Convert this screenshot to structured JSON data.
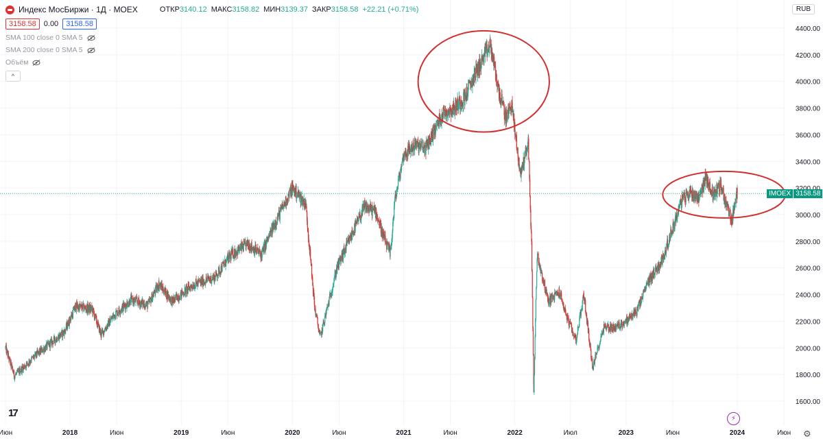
{
  "header": {
    "title": "Индекс МосБиржи · 1Д · MOEX",
    "ohlc": [
      {
        "label": "ОТКР",
        "value": "3140.12"
      },
      {
        "label": "МАКС",
        "value": "3158.82"
      },
      {
        "label": "МИН",
        "value": "3139.37"
      },
      {
        "label": "ЗАКР",
        "value": "3158.58"
      }
    ],
    "change": "+22.21 (+0.71%)",
    "sell_price": "3158.58",
    "spread": "0.00",
    "buy_price": "3158.58",
    "indicators": [
      "SMA 100 close 0 SMA 5",
      "SMA 200 close 0 SMA 5",
      "Объём"
    ],
    "collapse_symbol": "^",
    "currency": "RUB"
  },
  "price_tag": {
    "symbol": "IMOEX",
    "value": "3158.58"
  },
  "tv_logo": "17",
  "colors": {
    "up": "#22ab94",
    "down": "#e0312f",
    "grid": "#f0f3fa",
    "annotation": "#d32f2f",
    "price_line": "#22ab94"
  },
  "chart_data": {
    "type": "candlestick",
    "title": "Индекс МосБиржи · 1Д · MOEX",
    "ylim": [
      1500,
      4500
    ],
    "y_ticks": [
      "4400.00",
      "4200.00",
      "4000.00",
      "3800.00",
      "3600.00",
      "3400.00",
      "3200.00",
      "3000.00",
      "2800.00",
      "2600.00",
      "2400.00",
      "2200.00",
      "2000.00",
      "1800.00",
      "1600.00"
    ],
    "y_tick_values": [
      4400,
      4200,
      4000,
      3800,
      3600,
      3400,
      3200,
      3000,
      2800,
      2600,
      2400,
      2200,
      2000,
      1800,
      1600
    ],
    "x_ticks": [
      "Июн",
      "2018",
      "Июн",
      "2019",
      "Июн",
      "2020",
      "Июн",
      "2021",
      "Июн",
      "2022",
      "Июл",
      "2023",
      "Июн",
      "2024",
      "Июн"
    ],
    "x_tick_times": [
      2017.42,
      2018.0,
      2018.42,
      2019.0,
      2019.42,
      2020.0,
      2020.42,
      2021.0,
      2021.42,
      2022.0,
      2022.5,
      2023.0,
      2023.42,
      2024.0,
      2024.42
    ],
    "x_range": [
      2017.42,
      2024.64
    ],
    "close_path": [
      [
        2017.42,
        2000
      ],
      [
        2017.5,
        1790
      ],
      [
        2017.7,
        1950
      ],
      [
        2017.95,
        2120
      ],
      [
        2018.05,
        2310
      ],
      [
        2018.2,
        2290
      ],
      [
        2018.28,
        2100
      ],
      [
        2018.4,
        2250
      ],
      [
        2018.55,
        2360
      ],
      [
        2018.7,
        2320
      ],
      [
        2018.8,
        2480
      ],
      [
        2018.92,
        2350
      ],
      [
        2019.1,
        2470
      ],
      [
        2019.3,
        2530
      ],
      [
        2019.45,
        2700
      ],
      [
        2019.6,
        2780
      ],
      [
        2019.72,
        2700
      ],
      [
        2019.85,
        2950
      ],
      [
        2020.0,
        3200
      ],
      [
        2020.12,
        3080
      ],
      [
        2020.2,
        2300
      ],
      [
        2020.25,
        2080
      ],
      [
        2020.4,
        2600
      ],
      [
        2020.55,
        2880
      ],
      [
        2020.65,
        3060
      ],
      [
        2020.75,
        3020
      ],
      [
        2020.82,
        2830
      ],
      [
        2020.88,
        2700
      ],
      [
        2020.92,
        3100
      ],
      [
        2021.0,
        3450
      ],
      [
        2021.1,
        3520
      ],
      [
        2021.2,
        3500
      ],
      [
        2021.35,
        3760
      ],
      [
        2021.45,
        3800
      ],
      [
        2021.55,
        3880
      ],
      [
        2021.65,
        4070
      ],
      [
        2021.78,
        4270
      ],
      [
        2021.85,
        3950
      ],
      [
        2021.92,
        3720
      ],
      [
        2021.97,
        3830
      ],
      [
        2022.05,
        3300
      ],
      [
        2022.12,
        3550
      ],
      [
        2022.15,
        2780
      ],
      [
        2022.17,
        1680
      ],
      [
        2022.2,
        2700
      ],
      [
        2022.3,
        2350
      ],
      [
        2022.4,
        2420
      ],
      [
        2022.48,
        2200
      ],
      [
        2022.55,
        2060
      ],
      [
        2022.62,
        2400
      ],
      [
        2022.7,
        1850
      ],
      [
        2022.8,
        2160
      ],
      [
        2022.9,
        2150
      ],
      [
        2023.0,
        2200
      ],
      [
        2023.1,
        2280
      ],
      [
        2023.2,
        2500
      ],
      [
        2023.32,
        2650
      ],
      [
        2023.42,
        2900
      ],
      [
        2023.5,
        3110
      ],
      [
        2023.58,
        3170
      ],
      [
        2023.65,
        3130
      ],
      [
        2023.72,
        3280
      ],
      [
        2023.78,
        3150
      ],
      [
        2023.85,
        3220
      ],
      [
        2023.9,
        3080
      ],
      [
        2023.95,
        2960
      ],
      [
        2024.0,
        3158.58
      ]
    ],
    "last_close": 3158.58,
    "annotations": [
      {
        "shape": "ellipse",
        "center": [
          2021.72,
          4000
        ],
        "rx_years": 0.59,
        "ry_value": 380
      },
      {
        "shape": "ellipse",
        "center": [
          2023.88,
          3150
        ],
        "rx_years": 0.55,
        "ry_value": 175
      }
    ]
  }
}
